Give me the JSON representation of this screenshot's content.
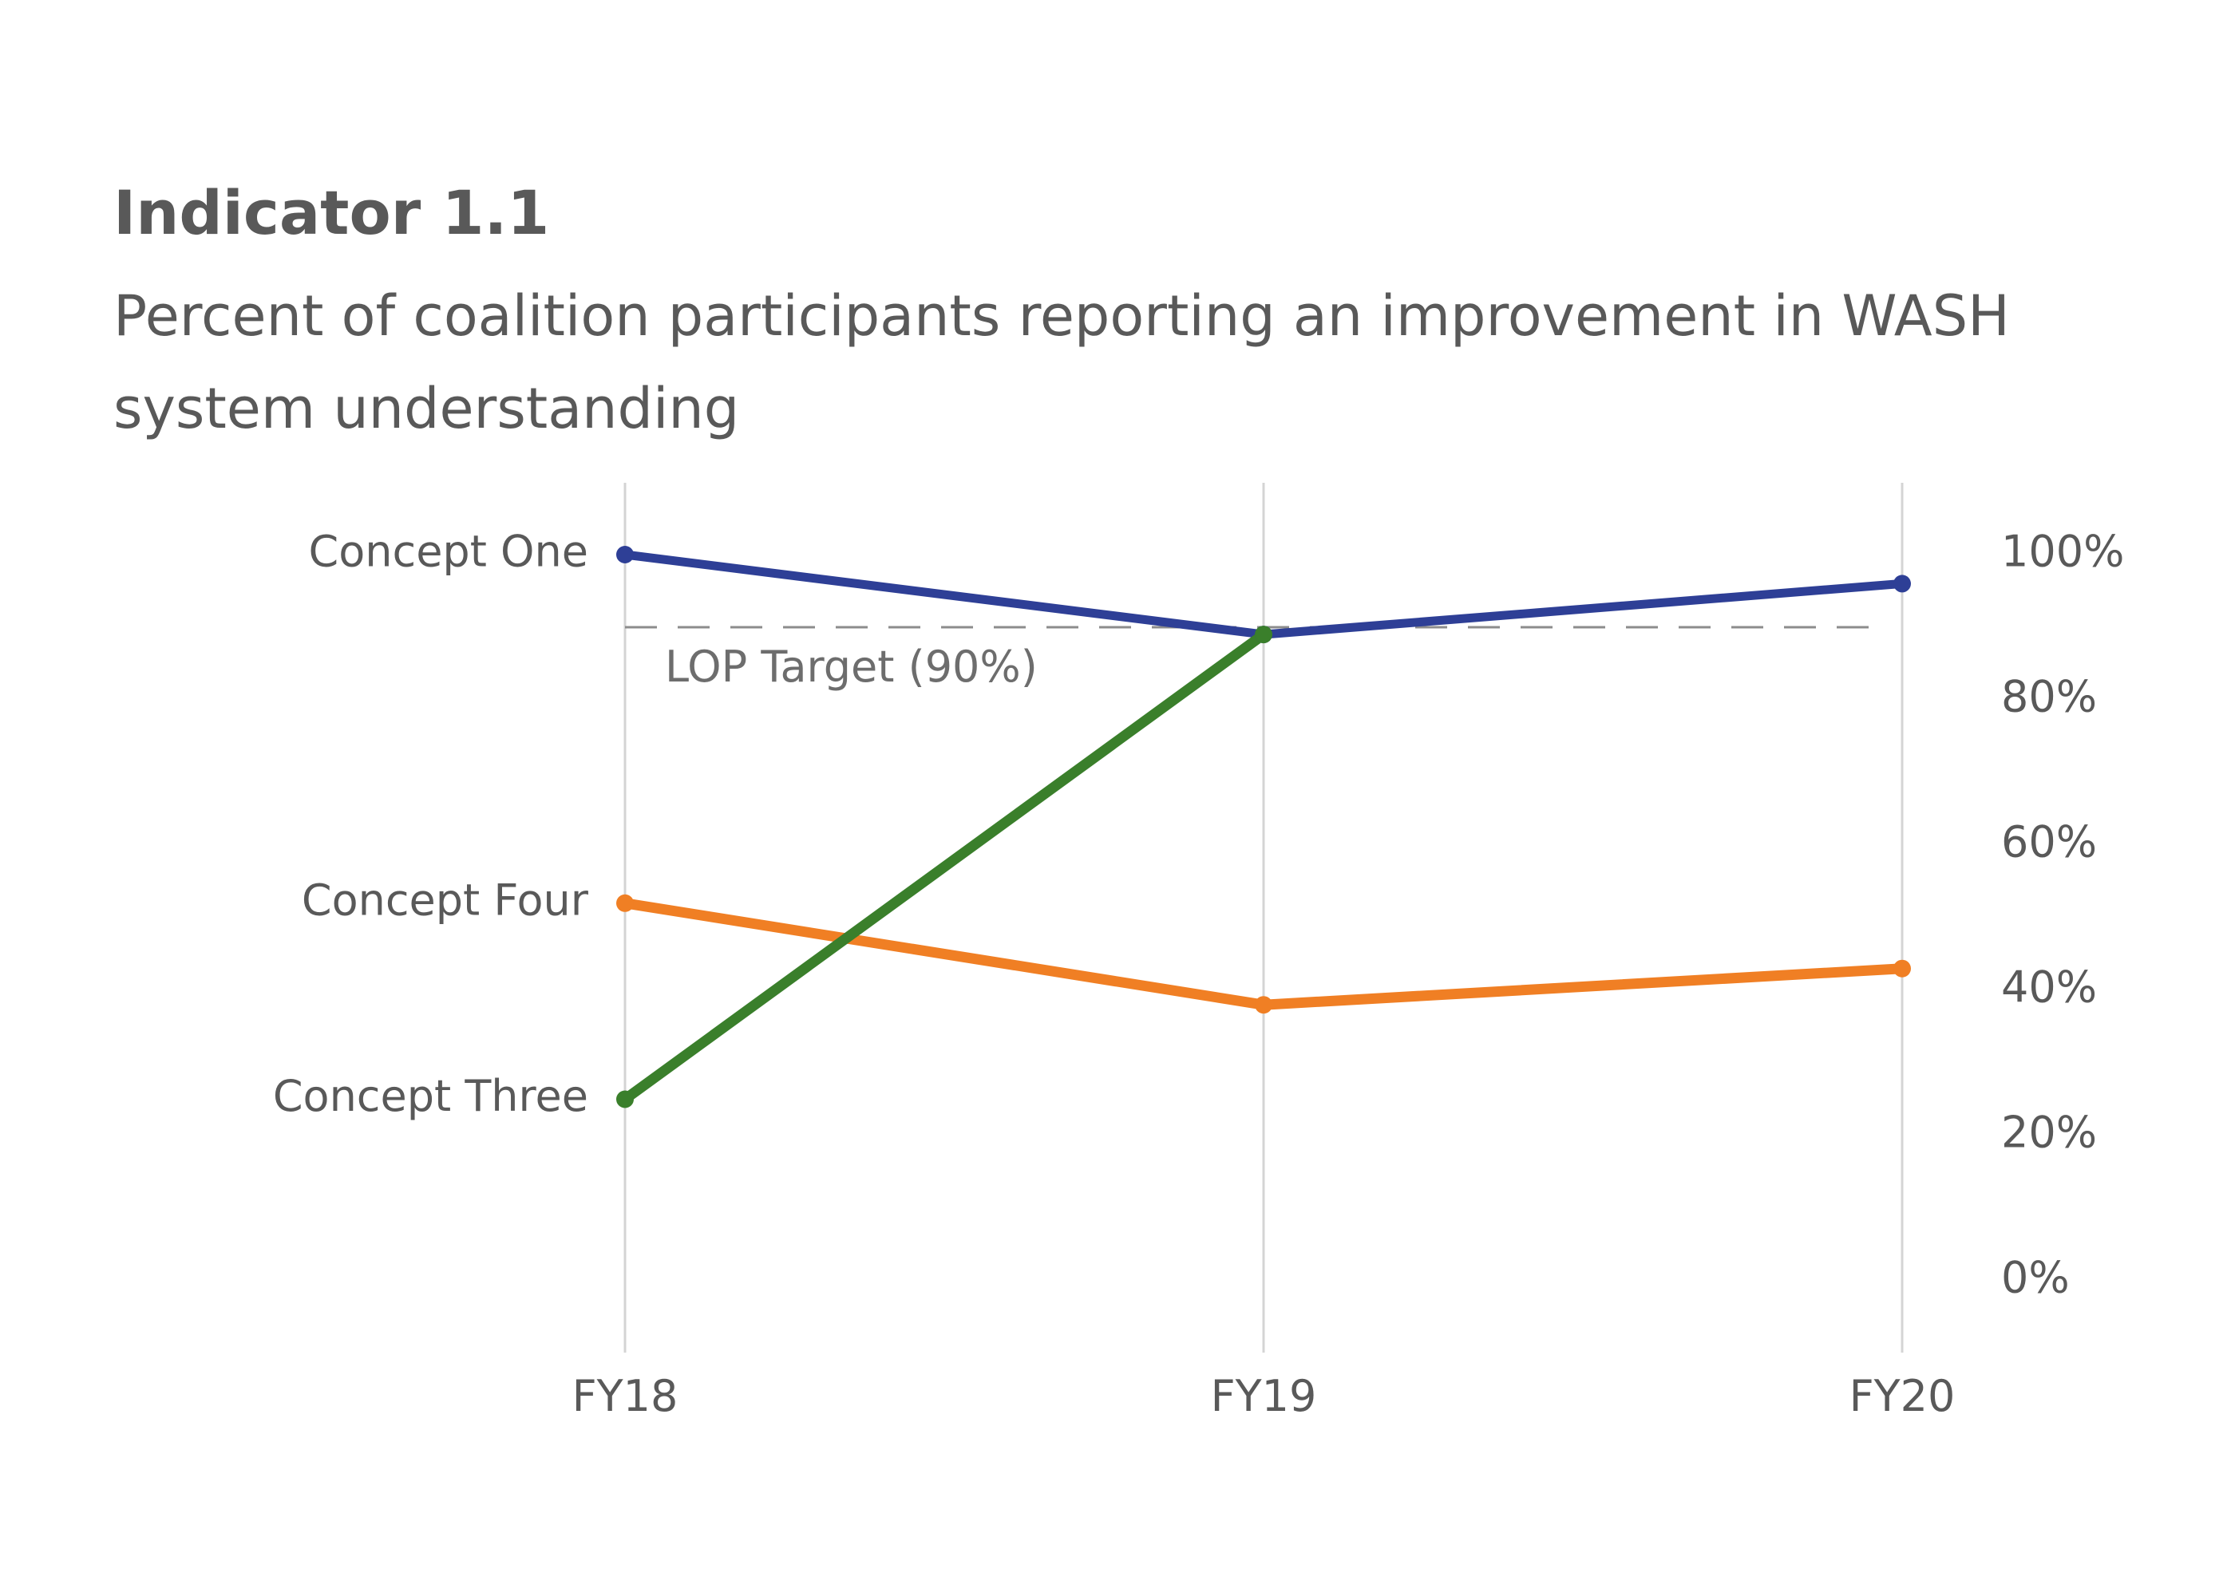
{
  "title": "Indicator 1.1",
  "subtitle": "Percent of coalition participants reporting an improvement in WASH system understanding",
  "chart_data": {
    "type": "line",
    "x": [
      "FY18",
      "FY19",
      "FY20"
    ],
    "series": [
      {
        "name": "Concept One",
        "values": [
          100,
          89,
          96
        ],
        "color": "#2e3f96"
      },
      {
        "name": "Concept Four",
        "values": [
          52,
          38,
          43
        ],
        "color": "#f07f24"
      },
      {
        "name": "Concept Three",
        "values": [
          25,
          89,
          null
        ],
        "color": "#3a7f2b"
      }
    ],
    "ylim": [
      0,
      100
    ],
    "yticks": [
      0,
      20,
      40,
      60,
      80,
      100
    ],
    "ytick_labels": [
      "0%",
      "20%",
      "40%",
      "60%",
      "80%",
      "100%"
    ],
    "target": {
      "value": 90,
      "label": "LOP Target (90%)"
    },
    "grid": "vertical",
    "yaxis_position": "right"
  }
}
